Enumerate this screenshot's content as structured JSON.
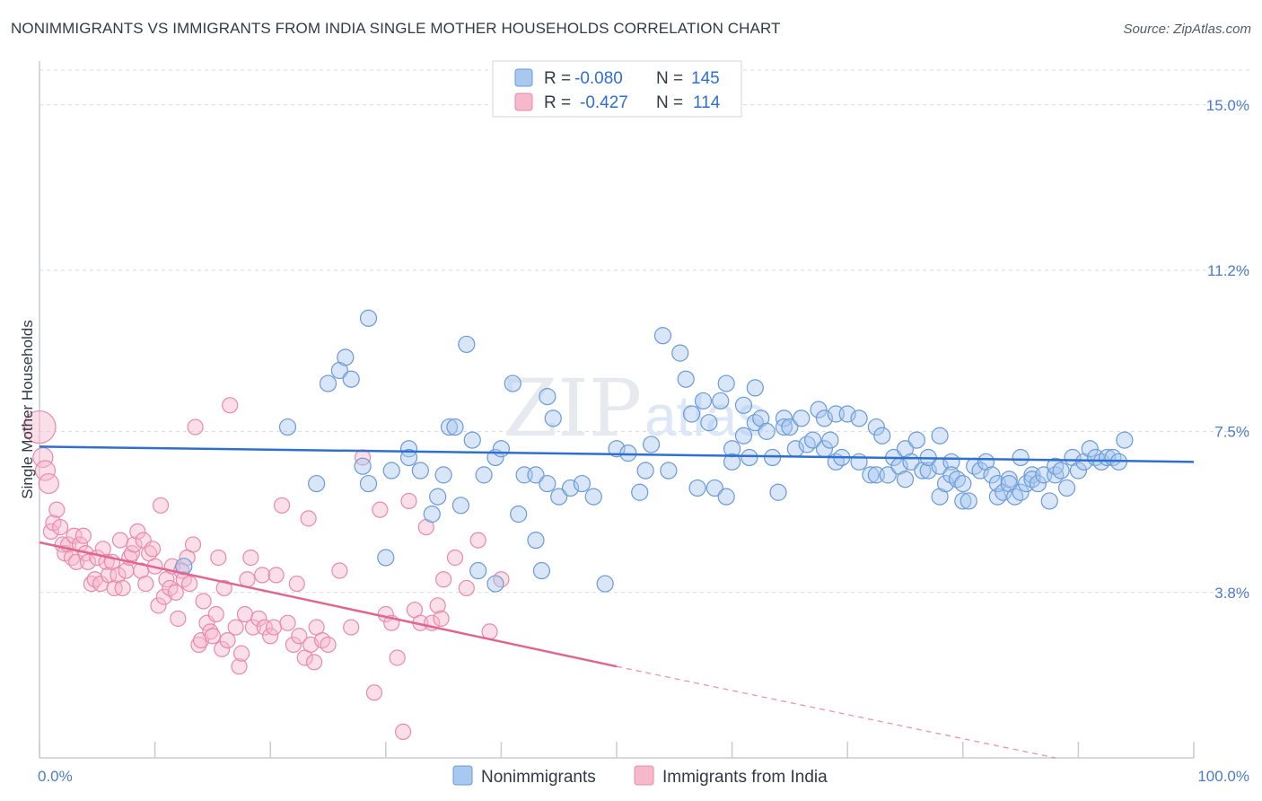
{
  "header": {
    "title": "NONIMMIGRANTS VS IMMIGRANTS FROM INDIA SINGLE MOTHER HOUSEHOLDS CORRELATION CHART",
    "source": "Source: ZipAtlas.com"
  },
  "watermark": {
    "text_zip": "ZIP",
    "text_atlas": "atlas"
  },
  "colors": {
    "blue_fill": "#a9c8f0",
    "blue_stroke": "#6a9ad8",
    "blue_line": "#2f6fcf",
    "pink_fill": "#f6b8cb",
    "pink_stroke": "#e88aa8",
    "pink_line": "#e0668f",
    "tick_label": "#4a7cc9",
    "grid": "#d6dbe3"
  },
  "legend": {
    "rows": [
      {
        "r_label": "R =",
        "r_value": "-0.080",
        "n_label": "N =",
        "n_value": "145"
      },
      {
        "r_label": "R =",
        "r_value": "-0.427",
        "n_label": "N =",
        "n_value": "114"
      }
    ]
  },
  "bottom_legend": {
    "items": [
      "Nonimmigrants",
      "Immigrants from India"
    ]
  },
  "chart_data": {
    "type": "scatter",
    "title": "NONIMMIGRANTS VS IMMIGRANTS FROM INDIA SINGLE MOTHER HOUSEHOLDS CORRELATION CHART",
    "ylabel": "Single Mother Households",
    "xlim": [
      0,
      100
    ],
    "ylim": [
      0,
      15.8
    ],
    "x_tick_labels": [
      "0.0%",
      "100.0%"
    ],
    "y_ticks": [
      3.8,
      7.5,
      11.2,
      15.0
    ],
    "y_tick_labels": [
      "3.8%",
      "7.5%",
      "11.2%",
      "15.0%"
    ],
    "grid": true,
    "legend_position": "top-center",
    "series": [
      {
        "name": "Nonimmigrants",
        "r": -0.08,
        "n": 145,
        "trend": {
          "x": [
            0,
            100
          ],
          "y": [
            7.15,
            6.8
          ]
        },
        "points": [
          [
            12.5,
            4.4
          ],
          [
            21.5,
            7.6
          ],
          [
            24,
            6.3
          ],
          [
            25,
            8.6
          ],
          [
            26,
            8.9
          ],
          [
            26.5,
            9.2
          ],
          [
            27,
            8.7
          ],
          [
            28,
            6.7
          ],
          [
            28.5,
            6.3
          ],
          [
            30,
            4.6
          ],
          [
            28.5,
            10.1
          ],
          [
            30.5,
            6.6
          ],
          [
            32,
            7.1
          ],
          [
            32,
            6.9
          ],
          [
            33,
            6.6
          ],
          [
            34,
            5.6
          ],
          [
            34.5,
            6.0
          ],
          [
            35,
            6.5
          ],
          [
            35.5,
            7.6
          ],
          [
            36,
            7.6
          ],
          [
            37,
            9.5
          ],
          [
            36.5,
            5.8
          ],
          [
            37.5,
            7.3
          ],
          [
            38,
            4.3
          ],
          [
            38.5,
            6.5
          ],
          [
            39.5,
            4.0
          ],
          [
            39.5,
            6.9
          ],
          [
            40,
            7.1
          ],
          [
            41,
            8.6
          ],
          [
            42,
            6.5
          ],
          [
            41.5,
            5.6
          ],
          [
            43,
            6.5
          ],
          [
            43,
            5.0
          ],
          [
            43.5,
            4.3
          ],
          [
            44.5,
            7.8
          ],
          [
            44,
            8.3
          ],
          [
            44,
            6.3
          ],
          [
            45,
            6.0
          ],
          [
            46,
            6.2
          ],
          [
            47,
            6.3
          ],
          [
            48,
            6.0
          ],
          [
            49,
            4.0
          ],
          [
            50,
            7.1
          ],
          [
            51,
            7.0
          ],
          [
            52,
            6.1
          ],
          [
            52.5,
            6.6
          ],
          [
            53,
            7.2
          ],
          [
            54,
            9.7
          ],
          [
            54.5,
            6.6
          ],
          [
            55.5,
            9.3
          ],
          [
            56,
            8.7
          ],
          [
            56.5,
            7.9
          ],
          [
            57,
            6.2
          ],
          [
            57.5,
            8.2
          ],
          [
            58,
            7.7
          ],
          [
            58.5,
            6.2
          ],
          [
            59,
            8.2
          ],
          [
            59.5,
            6.0
          ],
          [
            59.5,
            8.6
          ],
          [
            60,
            7.1
          ],
          [
            60,
            6.8
          ],
          [
            61,
            7.4
          ],
          [
            61,
            8.1
          ],
          [
            61.5,
            6.9
          ],
          [
            62,
            7.7
          ],
          [
            62,
            8.5
          ],
          [
            62.5,
            7.8
          ],
          [
            63,
            7.5
          ],
          [
            63.5,
            6.9
          ],
          [
            64,
            6.1
          ],
          [
            64.5,
            7.8
          ],
          [
            64.5,
            7.6
          ],
          [
            65,
            7.6
          ],
          [
            65.5,
            7.1
          ],
          [
            66,
            7.8
          ],
          [
            66.5,
            7.2
          ],
          [
            67,
            7.3
          ],
          [
            67.5,
            8.0
          ],
          [
            68,
            7.1
          ],
          [
            68,
            7.8
          ],
          [
            68.5,
            7.3
          ],
          [
            69,
            6.8
          ],
          [
            69,
            7.9
          ],
          [
            69.5,
            6.9
          ],
          [
            70,
            7.9
          ],
          [
            71,
            6.8
          ],
          [
            71,
            7.8
          ],
          [
            72,
            6.5
          ],
          [
            72.5,
            6.5
          ],
          [
            72.5,
            7.6
          ],
          [
            73,
            7.4
          ],
          [
            73.5,
            6.5
          ],
          [
            74,
            6.9
          ],
          [
            74.5,
            6.7
          ],
          [
            75,
            7.1
          ],
          [
            75,
            6.4
          ],
          [
            75.5,
            6.8
          ],
          [
            76,
            7.3
          ],
          [
            76.5,
            6.6
          ],
          [
            77,
            6.6
          ],
          [
            77,
            6.9
          ],
          [
            78,
            6.7
          ],
          [
            78,
            6.0
          ],
          [
            78,
            7.4
          ],
          [
            78.5,
            6.3
          ],
          [
            79,
            6.8
          ],
          [
            79,
            6.5
          ],
          [
            79.5,
            6.4
          ],
          [
            80,
            5.9
          ],
          [
            80,
            6.3
          ],
          [
            80.5,
            5.9
          ],
          [
            81,
            6.7
          ],
          [
            81.5,
            6.6
          ],
          [
            82,
            6.8
          ],
          [
            82.5,
            6.5
          ],
          [
            83,
            6.0
          ],
          [
            83,
            6.3
          ],
          [
            83.5,
            6.1
          ],
          [
            84,
            6.4
          ],
          [
            84,
            6.3
          ],
          [
            84.5,
            6.0
          ],
          [
            85,
            6.9
          ],
          [
            85,
            6.1
          ],
          [
            85.5,
            6.3
          ],
          [
            86,
            6.5
          ],
          [
            86,
            6.4
          ],
          [
            86.5,
            6.3
          ],
          [
            87,
            6.5
          ],
          [
            87.5,
            5.9
          ],
          [
            88,
            6.5
          ],
          [
            88,
            6.7
          ],
          [
            88.5,
            6.6
          ],
          [
            89,
            6.2
          ],
          [
            89.5,
            6.9
          ],
          [
            90,
            6.6
          ],
          [
            90.5,
            6.8
          ],
          [
            91,
            7.1
          ],
          [
            91.5,
            6.9
          ],
          [
            92,
            6.8
          ],
          [
            92.5,
            6.9
          ],
          [
            93,
            6.9
          ],
          [
            93.5,
            6.8
          ],
          [
            94,
            7.3
          ]
        ]
      },
      {
        "name": "Immigrants from India",
        "r": -0.427,
        "n": 114,
        "trend": {
          "x": [
            0,
            50
          ],
          "y": [
            4.95,
            2.1
          ]
        },
        "trend_dashed": {
          "x": [
            50,
            88
          ],
          "y": [
            2.1,
            0
          ]
        },
        "points": [
          [
            0,
            7.6
          ],
          [
            0.3,
            6.9
          ],
          [
            0.5,
            6.6
          ],
          [
            0.8,
            6.3
          ],
          [
            1,
            5.2
          ],
          [
            1.2,
            5.4
          ],
          [
            1.5,
            5.7
          ],
          [
            1.8,
            5.3
          ],
          [
            2,
            4.9
          ],
          [
            2.2,
            4.7
          ],
          [
            2.5,
            4.9
          ],
          [
            2.8,
            4.6
          ],
          [
            3,
            5.1
          ],
          [
            3.2,
            4.5
          ],
          [
            3.5,
            4.9
          ],
          [
            3.8,
            5.1
          ],
          [
            4,
            4.7
          ],
          [
            4.2,
            4.5
          ],
          [
            4.5,
            4.0
          ],
          [
            4.8,
            4.1
          ],
          [
            5,
            4.6
          ],
          [
            5.3,
            4.0
          ],
          [
            5.5,
            4.8
          ],
          [
            5.8,
            4.5
          ],
          [
            6,
            4.2
          ],
          [
            6.3,
            4.5
          ],
          [
            6.5,
            3.9
          ],
          [
            6.8,
            4.2
          ],
          [
            7,
            5.0
          ],
          [
            7.2,
            3.9
          ],
          [
            7.5,
            4.3
          ],
          [
            7.8,
            4.6
          ],
          [
            8,
            4.7
          ],
          [
            8.2,
            4.9
          ],
          [
            8.5,
            5.2
          ],
          [
            8.8,
            4.3
          ],
          [
            9,
            5.0
          ],
          [
            9.2,
            4.0
          ],
          [
            9.5,
            4.7
          ],
          [
            9.8,
            4.8
          ],
          [
            10,
            4.4
          ],
          [
            10.3,
            3.5
          ],
          [
            10.5,
            5.8
          ],
          [
            10.8,
            3.7
          ],
          [
            11,
            4.1
          ],
          [
            11.3,
            3.9
          ],
          [
            11.5,
            4.4
          ],
          [
            11.8,
            3.8
          ],
          [
            12,
            3.2
          ],
          [
            12.3,
            4.3
          ],
          [
            12.5,
            4.1
          ],
          [
            12.8,
            4.6
          ],
          [
            13,
            4.0
          ],
          [
            13.3,
            4.9
          ],
          [
            13.5,
            7.6
          ],
          [
            13.8,
            2.6
          ],
          [
            14,
            2.7
          ],
          [
            14.2,
            3.6
          ],
          [
            14.5,
            3.1
          ],
          [
            14.8,
            2.9
          ],
          [
            15,
            2.8
          ],
          [
            15.3,
            3.3
          ],
          [
            15.5,
            4.6
          ],
          [
            15.8,
            2.5
          ],
          [
            16,
            3.9
          ],
          [
            16.3,
            2.7
          ],
          [
            16.5,
            8.1
          ],
          [
            17,
            3.0
          ],
          [
            17.3,
            2.1
          ],
          [
            17.5,
            2.4
          ],
          [
            17.8,
            3.3
          ],
          [
            18,
            4.1
          ],
          [
            18.3,
            4.6
          ],
          [
            18.5,
            3.0
          ],
          [
            19,
            3.2
          ],
          [
            19.3,
            4.2
          ],
          [
            19.5,
            3.0
          ],
          [
            20,
            2.8
          ],
          [
            20.3,
            3.0
          ],
          [
            20.5,
            4.2
          ],
          [
            21,
            5.8
          ],
          [
            21.5,
            3.1
          ],
          [
            22,
            2.6
          ],
          [
            22.3,
            4.0
          ],
          [
            22.5,
            2.8
          ],
          [
            23,
            2.3
          ],
          [
            23.3,
            5.5
          ],
          [
            23.5,
            2.6
          ],
          [
            23.8,
            2.2
          ],
          [
            24,
            3.0
          ],
          [
            24.5,
            2.7
          ],
          [
            25,
            2.6
          ],
          [
            26,
            4.3
          ],
          [
            27,
            3.0
          ],
          [
            28,
            6.9
          ],
          [
            29,
            1.5
          ],
          [
            29.5,
            5.7
          ],
          [
            30,
            3.3
          ],
          [
            30.5,
            3.1
          ],
          [
            31,
            2.3
          ],
          [
            31.5,
            0.6
          ],
          [
            32,
            5.9
          ],
          [
            32.5,
            3.4
          ],
          [
            33,
            3.1
          ],
          [
            33.5,
            5.3
          ],
          [
            34,
            3.1
          ],
          [
            34.5,
            3.5
          ],
          [
            34.8,
            3.2
          ],
          [
            35,
            4.1
          ],
          [
            36,
            4.6
          ],
          [
            37,
            3.9
          ],
          [
            38,
            5.0
          ],
          [
            39,
            2.9
          ],
          [
            40,
            4.1
          ]
        ]
      }
    ]
  }
}
